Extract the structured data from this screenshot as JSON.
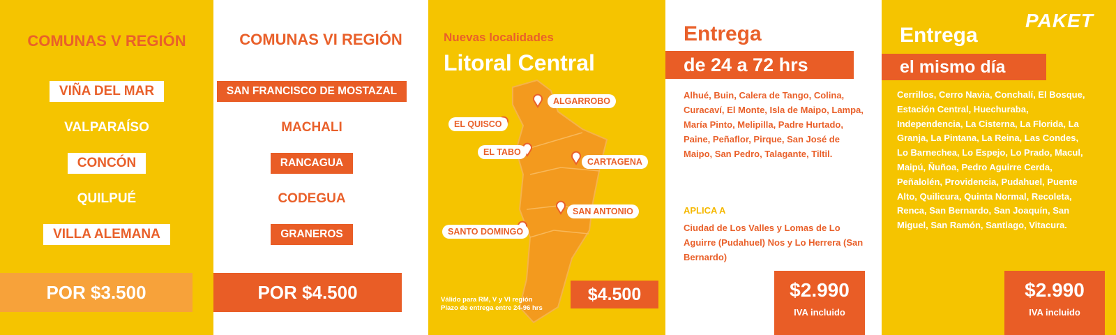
{
  "panels": [
    {
      "title": "COMUNAS V REGIÓN",
      "items": [
        "VIÑA DEL MAR",
        "VALPARAÍSO",
        "CONCÓN",
        "QUILPUÉ",
        "VILLA ALEMANA"
      ],
      "price": "POR $3.500"
    },
    {
      "title": "COMUNAS VI REGIÓN",
      "items": [
        "SAN FRANCISCO DE MOSTAZAL",
        "MACHALI",
        "RANCAGUA",
        "CODEGUA",
        "GRANEROS"
      ],
      "price": "POR $4.500"
    },
    {
      "subtitle": "Nuevas localidades",
      "title": "Litoral Central",
      "places": [
        "ALGARROBO",
        "EL QUISCO",
        "EL TABO",
        "CARTAGENA",
        "SAN ANTONIO",
        "SANTO DOMINGO"
      ],
      "price": "$4.500",
      "notes": [
        "Válido para RM, V y VI región",
        "Plazo de entrega entre 24-96 hrs"
      ]
    },
    {
      "title": "Entrega",
      "band": "de 24 a 72 hrs",
      "text": "Alhué, Buin, Calera de Tango, Colina, Curacaví, El Monte, Isla de Maipo, Lampa, María Pinto, Melipilla, Padre Hurtado, Paine, Peñaflor, Pirque, San José de Maipo, San Pedro, Talagante, Tiltil.",
      "applies_label": "APLICA A",
      "applies_text": "Ciudad de Los Valles y Lomas de Lo Aguirre (Pudahuel) Nos y Lo Herrera (San Bernardo)",
      "price": "$2.990",
      "price_note": "IVA incluido"
    },
    {
      "logo": "PAKET",
      "title": "Entrega",
      "band": "el mismo día",
      "text": "Cerrillos, Cerro Navia, Conchalí, El Bosque, Estación Central, Huechuraba, Independencia, La Cisterna, La Florida, La Granja, La Pintana, La Reina, Las Condes, Lo Barnechea, Lo Espejo, Lo Prado, Macul, Maipú, Ñuñoa, Pedro Aguirre Cerda, Peñalolén, Providencia, Pudahuel, Puente Alto, Quilicura, Quinta Normal, Recoleta, Renca, San Bernardo, San Joaquín, San Miguel, San Ramón, Santiago, Vitacura.",
      "price": "$2.990",
      "price_note": "IVA incluido"
    }
  ]
}
